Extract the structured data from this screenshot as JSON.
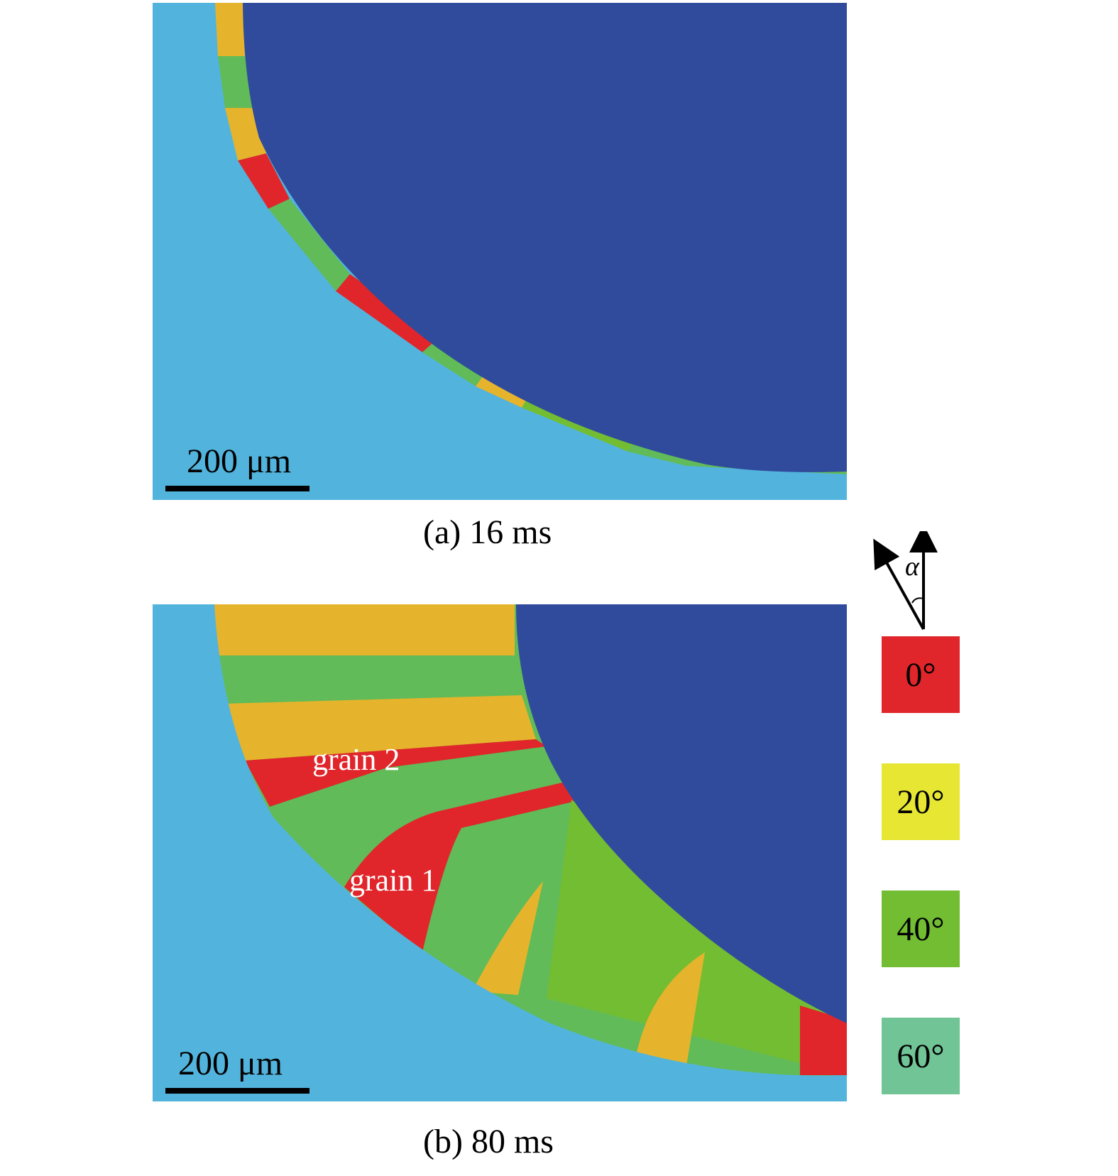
{
  "colors": {
    "melt_pool": "#304b9c",
    "substrate": "#52b4dc",
    "orientation_0": "#e0262b",
    "orientation_20": "#e6e633",
    "orientation_40": "#73bd33",
    "orientation_60": "#70c496",
    "grain_orange": "#e6b42c",
    "grain_green": "#61bb58"
  },
  "panel_a": {
    "scalebar": "200 μm",
    "caption": "(a) 16 ms"
  },
  "panel_b": {
    "scalebar": "200 μm",
    "caption": "(b) 80 ms",
    "grain_labels": [
      "grain 2",
      "grain 1"
    ]
  },
  "legend": {
    "angle_symbol": "α",
    "items": [
      {
        "label": "0°",
        "color": "#e0262b"
      },
      {
        "label": "20°",
        "color": "#e6e633"
      },
      {
        "label": "40°",
        "color": "#73bd33"
      },
      {
        "label": "60°",
        "color": "#70c496"
      }
    ]
  }
}
